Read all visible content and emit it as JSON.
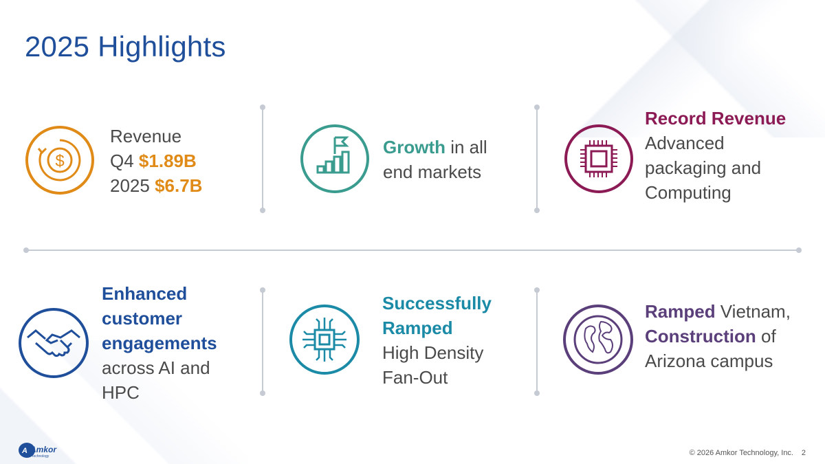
{
  "slide": {
    "title": "2025 Highlights"
  },
  "cards": {
    "revenue": {
      "icon": "dollar-cycle-icon",
      "line1": "Revenue",
      "line2_prefix": "Q4 ",
      "line2_value": "$1.89B",
      "line3_prefix": "2025 ",
      "line3_value": "$6.7B"
    },
    "growth": {
      "icon": "growth-bars-flag-icon",
      "highlight": "Growth",
      "rest1": " in all",
      "rest2": "end markets"
    },
    "record": {
      "icon": "chip-icon",
      "highlight": "Record Revenue",
      "line2": "Advanced",
      "line3": "packaging and",
      "line4": "Computing"
    },
    "customer": {
      "icon": "handshake-icon",
      "h1": "Enhanced",
      "h2": "customer",
      "h3": "engagements",
      "line4": "across AI and",
      "line5": "HPC"
    },
    "fanout": {
      "icon": "circuit-chip-icon",
      "h1": "Successfully",
      "h2": "Ramped",
      "line3": "High Density",
      "line4": "Fan-Out"
    },
    "vietnam": {
      "icon": "globe-icon",
      "h1": "Ramped",
      "rest1": " Vietnam,",
      "h2": "Construction",
      "rest2": " of",
      "line3": "Arizona campus"
    }
  },
  "colors": {
    "title": "#1f4e9a",
    "orange": "#e08a17",
    "teal": "#3a9b8f",
    "maroon": "#8b1a55",
    "navy": "#1f4e9a",
    "cyan": "#1a8aa6",
    "purple": "#5b3f7a"
  },
  "footer": {
    "logo_text": "Amkor",
    "logo_sub": "Technology",
    "copyright": "© 2026 Amkor Technology, Inc.",
    "page": "2"
  }
}
